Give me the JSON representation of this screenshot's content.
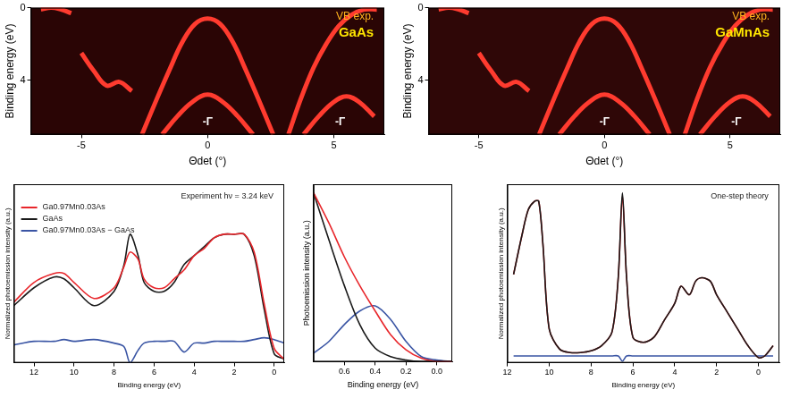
{
  "chart_data": [
    {
      "type": "line",
      "x_label": "Θdet (°)",
      "y_label": "Binding energy (eV)",
      "xlim": [
        -7,
        7
      ],
      "xticks": [
        -5,
        0,
        5
      ],
      "ylim": [
        7,
        0
      ],
      "yticks": [
        0,
        4
      ],
      "grid": false,
      "color": "#ff3b2f",
      "annotations": [
        {
          "text": "VB exp."
        },
        {
          "text": "GaAs"
        },
        {
          "text": "-Γ"
        },
        {
          "text": "-Γ"
        }
      ],
      "bands": [
        {
          "x": [
            -2.6,
            -2,
            -1.5,
            -1,
            -0.5,
            0,
            0.5,
            1,
            1.5,
            2,
            2.6
          ],
          "y": [
            7,
            5,
            3.4,
            1.9,
            0.9,
            0.6,
            0.9,
            1.9,
            3.4,
            5,
            7
          ]
        },
        {
          "x": [
            3.2,
            3.7,
            4.2,
            4.7,
            5.2,
            5.7,
            6.2,
            6.7
          ],
          "y": [
            7,
            5,
            3.3,
            2,
            1,
            0.4,
            0.1,
            0.1
          ]
        },
        {
          "x": [
            -6.6,
            -6.2,
            -5.8,
            -5.4
          ],
          "y": [
            0.1,
            0,
            0.1,
            0.3
          ]
        },
        {
          "x": [
            -1.8,
            -1.2,
            -0.6,
            0,
            0.6,
            1.2,
            1.8
          ],
          "y": [
            7,
            6,
            5.2,
            4.8,
            5.2,
            6,
            7
          ]
        },
        {
          "x": [
            3.8,
            4.4,
            5,
            5.5,
            6,
            6.6
          ],
          "y": [
            7,
            6,
            5.2,
            4.9,
            5.2,
            6
          ]
        },
        {
          "x": [
            -5,
            -4.5,
            -4,
            -3.5,
            -3
          ],
          "y": [
            2.5,
            3.5,
            4.3,
            4.1,
            4.6
          ]
        }
      ]
    },
    {
      "type": "line",
      "x_label": "Θdet (°)",
      "y_label": "Binding energy (eV)",
      "xlim": [
        -7,
        7
      ],
      "xticks": [
        -5,
        0,
        5
      ],
      "ylim": [
        7,
        0
      ],
      "yticks": [
        0,
        4
      ],
      "grid": false,
      "color": "#ff3b2f",
      "annotations": [
        {
          "text": "VB exp."
        },
        {
          "text": "GaMnAs"
        },
        {
          "text": "-Γ"
        },
        {
          "text": "-Γ"
        }
      ],
      "bands": [
        {
          "x": [
            -2.6,
            -2,
            -1.5,
            -1,
            -0.5,
            0,
            0.5,
            1,
            1.5,
            2,
            2.6
          ],
          "y": [
            7,
            5,
            3.4,
            1.9,
            0.9,
            0.6,
            0.9,
            1.9,
            3.4,
            5,
            7
          ]
        },
        {
          "x": [
            3.2,
            3.7,
            4.2,
            4.7,
            5.2,
            5.7,
            6.2,
            6.7
          ],
          "y": [
            7,
            5,
            3.3,
            2,
            1,
            0.4,
            0.1,
            0.1
          ]
        },
        {
          "x": [
            -6.6,
            -6.2,
            -5.8,
            -5.4
          ],
          "y": [
            0.1,
            0,
            0.1,
            0.3
          ]
        },
        {
          "x": [
            -1.8,
            -1.2,
            -0.6,
            0,
            0.6,
            1.2,
            1.8
          ],
          "y": [
            7,
            6,
            5.2,
            4.8,
            5.2,
            6,
            7
          ]
        },
        {
          "x": [
            3.8,
            4.4,
            5,
            5.5,
            6,
            6.6
          ],
          "y": [
            7,
            6,
            5.2,
            4.9,
            5.2,
            6
          ]
        },
        {
          "x": [
            -5,
            -4.5,
            -4,
            -3.5,
            -3
          ],
          "y": [
            2.5,
            3.5,
            4.3,
            4.1,
            4.6
          ]
        }
      ]
    },
    {
      "type": "line",
      "x_label": "Binding energy (eV)",
      "y_label": "Normalized photoemission intensity (a.u.)",
      "xlim": [
        13,
        -0.5
      ],
      "xticks": [
        12,
        10,
        8,
        6,
        4,
        2,
        0
      ],
      "ylim": [
        0,
        1
      ],
      "tick_labels": "x",
      "grid": false,
      "legend": "upper left",
      "annotations": [
        {
          "text": "Experiment hν = 3.24 keV"
        }
      ],
      "x": [
        13,
        12,
        11,
        10.5,
        10,
        9,
        8,
        7.5,
        7.2,
        6.8,
        6.5,
        6,
        5.5,
        5,
        4.5,
        4,
        3.5,
        3,
        2.5,
        2,
        1.5,
        1,
        0.5,
        0,
        -0.5
      ],
      "series": [
        {
          "name": "Ga0.97Mn0.03As",
          "color": "#e8262b",
          "values": [
            0.34,
            0.45,
            0.5,
            0.5,
            0.45,
            0.36,
            0.42,
            0.54,
            0.62,
            0.58,
            0.47,
            0.42,
            0.42,
            0.47,
            0.52,
            0.6,
            0.64,
            0.7,
            0.72,
            0.72,
            0.72,
            0.62,
            0.33,
            0.08,
            0.02
          ]
        },
        {
          "name": "GaAs",
          "color": "#1a1a1a",
          "values": [
            0.32,
            0.42,
            0.48,
            0.47,
            0.42,
            0.32,
            0.4,
            0.55,
            0.72,
            0.6,
            0.45,
            0.4,
            0.4,
            0.45,
            0.55,
            0.6,
            0.65,
            0.7,
            0.72,
            0.72,
            0.72,
            0.6,
            0.3,
            0.05,
            0.02
          ]
        },
        {
          "name": "Ga0.97Mn0.03As − GaAs",
          "color": "#3a55a4",
          "values": [
            0.1,
            0.12,
            0.12,
            0.13,
            0.12,
            0.13,
            0.11,
            0.09,
            0.0,
            0.07,
            0.11,
            0.12,
            0.12,
            0.12,
            0.06,
            0.11,
            0.11,
            0.12,
            0.12,
            0.12,
            0.12,
            0.13,
            0.14,
            0.13,
            0.11
          ]
        }
      ]
    },
    {
      "type": "line",
      "x_label": "Binding energy (eV)",
      "y_label": "Photoemission intensity (a.u.)",
      "xlim": [
        0.8,
        -0.1
      ],
      "xticks": [
        0.6,
        0.4,
        0.2,
        {
          "value": 0,
          "label": "0.0"
        }
      ],
      "ylim": [
        0,
        1.05
      ],
      "tick_labels": "x",
      "grid": false,
      "x": [
        0.8,
        0.7,
        0.6,
        0.5,
        0.4,
        0.3,
        0.2,
        0.1,
        0,
        -0.1
      ],
      "series": [
        {
          "color": "#e8262b",
          "values": [
            1.0,
            0.82,
            0.62,
            0.45,
            0.3,
            0.16,
            0.07,
            0.02,
            0,
            0
          ]
        },
        {
          "color": "#1a1a1a",
          "values": [
            1.0,
            0.72,
            0.45,
            0.22,
            0.08,
            0.03,
            0.01,
            0,
            0,
            0
          ]
        },
        {
          "color": "#3a55a4",
          "values": [
            0.05,
            0.12,
            0.22,
            0.3,
            0.33,
            0.25,
            0.12,
            0.03,
            0.01,
            0
          ]
        }
      ]
    },
    {
      "type": "line",
      "x_label": "Binding energy (eV)",
      "y_label": "Normalized photoemission intensity (a.u.)",
      "xlim": [
        12,
        -1
      ],
      "xticks": [
        12,
        10,
        8,
        6,
        4,
        2,
        0
      ],
      "ylim": [
        0,
        1.05
      ],
      "tick_labels": "x",
      "grid": false,
      "annotations": [
        {
          "text": "One-step theory"
        }
      ],
      "x": [
        11.7,
        11.3,
        11,
        10.7,
        10.5,
        10.3,
        10,
        9.5,
        9,
        8.5,
        8,
        7.5,
        7,
        6.7,
        6.5,
        6.3,
        6,
        5.5,
        5,
        4.5,
        4,
        3.7,
        3.3,
        3,
        2.7,
        2.3,
        2,
        1.5,
        1,
        0.5,
        0,
        -0.3,
        -0.7
      ],
      "series": [
        {
          "color": "#1a1a1a",
          "values": [
            0.52,
            0.75,
            0.9,
            0.95,
            0.95,
            0.7,
            0.2,
            0.08,
            0.06,
            0.06,
            0.07,
            0.1,
            0.18,
            0.5,
            1.0,
            0.5,
            0.15,
            0.12,
            0.15,
            0.25,
            0.35,
            0.45,
            0.4,
            0.48,
            0.5,
            0.48,
            0.4,
            0.3,
            0.2,
            0.1,
            0.03,
            0.04,
            0.1
          ]
        },
        {
          "color": "#e8262b",
          "values": [
            0.52,
            0.75,
            0.9,
            0.95,
            0.95,
            0.7,
            0.2,
            0.08,
            0.06,
            0.06,
            0.07,
            0.1,
            0.18,
            0.5,
            0.98,
            0.5,
            0.15,
            0.12,
            0.15,
            0.25,
            0.35,
            0.45,
            0.4,
            0.48,
            0.5,
            0.48,
            0.4,
            0.3,
            0.2,
            0.1,
            0.03,
            0.04,
            0.1
          ]
        },
        {
          "color": "#3a55a4",
          "values": [
            0.04,
            0.04,
            0.04,
            0.04,
            0.04,
            0.04,
            0.04,
            0.04,
            0.04,
            0.04,
            0.04,
            0.04,
            0.04,
            0.04,
            0.01,
            0.04,
            0.04,
            0.04,
            0.04,
            0.04,
            0.04,
            0.04,
            0.04,
            0.04,
            0.04,
            0.04,
            0.04,
            0.04,
            0.04,
            0.04,
            0.04,
            0.04,
            0.04
          ]
        }
      ]
    }
  ]
}
